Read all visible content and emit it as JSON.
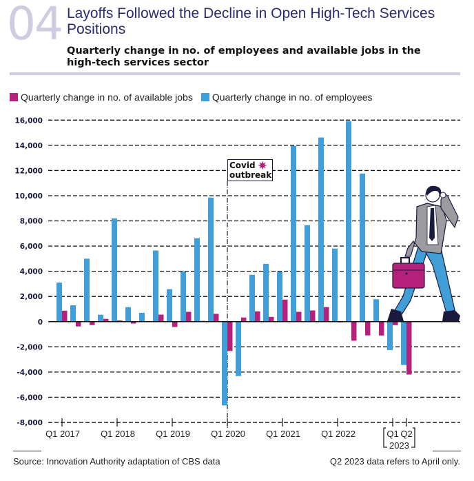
{
  "header": {
    "number": "04",
    "title": "Layoffs Followed the Decline in Open High-Tech Services Positions",
    "subtitle": "Quarterly change in no. of employees and available jobs in the high-tech services sector"
  },
  "legend": [
    {
      "label": "Quarterly change in no. of available jobs",
      "color": "#b5207a"
    },
    {
      "label": "Quarterly change in no. of employees",
      "color": "#419fd8"
    }
  ],
  "annotation": {
    "line1": "Covid",
    "line2": "outbreak",
    "icon": "virus-icon",
    "at_quarter": "Q1 2020"
  },
  "footer": {
    "source": "Source: Innovation Authority adaptation of CBS data",
    "note": "Q2 2023 data refers to April only."
  },
  "colors": {
    "employees": "#419fd8",
    "jobs": "#b5207a",
    "axis": "#111111",
    "accent": "#cdcce0",
    "title": "#2a2a6e"
  },
  "chart_data": {
    "type": "bar",
    "title": "Layoffs Followed the Decline in Open High-Tech Services Positions",
    "subtitle": "Quarterly change in no. of employees and available jobs in the high-tech services sector",
    "xlabel": "",
    "ylabel": "",
    "ylim": [
      -8000,
      16000
    ],
    "yticks": [
      -8000,
      -6000,
      -4000,
      -2000,
      0,
      2000,
      4000,
      6000,
      8000,
      10000,
      12000,
      14000,
      16000
    ],
    "ytick_labels": [
      "-8,000",
      "-6,000",
      "-4,000",
      "-2,000",
      "0",
      "2,000",
      "4,000",
      "6,000",
      "8,000",
      "10,000",
      "12,000",
      "14,000",
      "16,000"
    ],
    "grid": "horizontal dashed",
    "legend_position": "top-left",
    "categories": [
      "Q1 2017",
      "Q2 2017",
      "Q3 2017",
      "Q4 2017",
      "Q1 2018",
      "Q2 2018",
      "Q3 2018",
      "Q4 2018",
      "Q1 2019",
      "Q2 2019",
      "Q3 2019",
      "Q4 2019",
      "Q1 2020",
      "Q2 2020",
      "Q3 2020",
      "Q4 2020",
      "Q1 2021",
      "Q2 2021",
      "Q3 2021",
      "Q4 2021",
      "Q1 2022",
      "Q2 2022",
      "Q3 2022",
      "Q4 2022",
      "Q1 2023",
      "Q2 2023"
    ],
    "xtick_labels": [
      {
        "label": "Q1 2017",
        "category": "Q1 2017"
      },
      {
        "label": "Q1 2018",
        "category": "Q1 2018"
      },
      {
        "label": "Q1 2019",
        "category": "Q1 2019"
      },
      {
        "label": "Q1 2020",
        "category": "Q1 2020"
      },
      {
        "label": "Q1 2021",
        "category": "Q1 2021"
      },
      {
        "label": "Q1 2022",
        "category": "Q1 2022"
      },
      {
        "label": "Q1",
        "category": "Q1 2023"
      },
      {
        "label": "Q2",
        "category": "Q2 2023"
      }
    ],
    "group_label": {
      "label": "2023",
      "categories": [
        "Q1 2023",
        "Q2 2023"
      ]
    },
    "series": [
      {
        "name": "Quarterly change in no. of employees",
        "color": "#419fd8",
        "values": [
          3100,
          1300,
          5000,
          550,
          8200,
          1150,
          700,
          5650,
          2580,
          3980,
          6630,
          9850,
          -6650,
          -4320,
          3720,
          4590,
          3970,
          13960,
          7660,
          14620,
          5800,
          15900,
          11760,
          1780,
          -2260,
          -3440
        ]
      },
      {
        "name": "Quarterly change in no. of available jobs",
        "color": "#b5207a",
        "values": [
          870,
          -380,
          -270,
          220,
          100,
          -150,
          0,
          560,
          -420,
          780,
          60,
          620,
          -2330,
          330,
          820,
          380,
          1750,
          780,
          890,
          1160,
          -50,
          -1510,
          -1090,
          -1100,
          -280,
          -4200
        ]
      }
    ]
  }
}
